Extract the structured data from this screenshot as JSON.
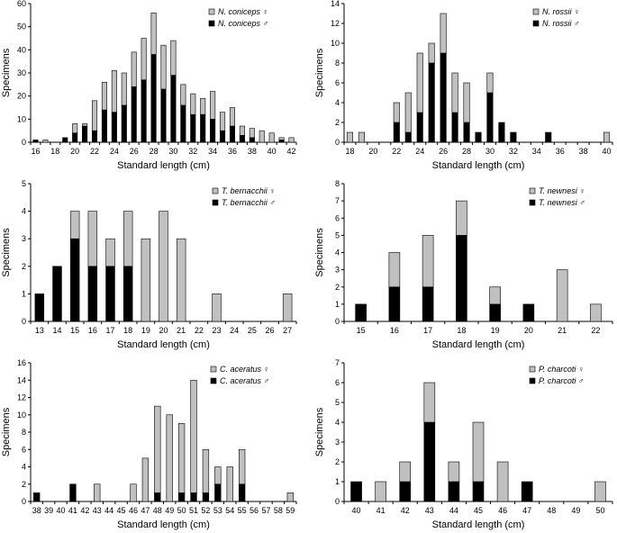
{
  "colors": {
    "female": "#c0c0c0",
    "male": "#000000",
    "axis": "#000000",
    "background": "#ffffff"
  },
  "chart_data": [
    {
      "type": "bar",
      "stacked": true,
      "title": "",
      "xlabel": "Standard length (cm)",
      "ylabel": "Specimens",
      "ylim": [
        0,
        60
      ],
      "yticks": [
        0,
        10,
        20,
        30,
        40,
        50,
        60
      ],
      "categories": [
        16,
        17,
        18,
        19,
        20,
        21,
        22,
        23,
        24,
        25,
        26,
        27,
        28,
        29,
        30,
        31,
        32,
        33,
        34,
        35,
        36,
        37,
        38,
        39,
        40,
        41,
        42
      ],
      "xtick_labels": [
        "16",
        "18",
        "20",
        "22",
        "24",
        "26",
        "28",
        "30",
        "32",
        "34",
        "36",
        "38",
        "40",
        "42"
      ],
      "series": [
        {
          "name": "N. coniceps ♀",
          "sex": "female",
          "values": [
            0,
            1,
            0,
            0,
            4,
            1,
            13,
            12,
            18,
            14,
            15,
            18,
            18,
            19,
            15,
            9,
            9,
            7,
            12,
            8,
            8,
            4,
            4,
            5,
            4,
            1,
            2
          ]
        },
        {
          "name": "N. coniceps ♂",
          "sex": "male",
          "values": [
            1,
            0,
            0,
            2,
            4,
            7,
            5,
            14,
            13,
            16,
            24,
            27,
            38,
            23,
            29,
            16,
            12,
            12,
            10,
            5,
            7,
            3,
            2,
            0,
            0,
            1,
            0
          ]
        }
      ],
      "legend": {
        "position": "top-right",
        "entries": [
          "N. coniceps ♀",
          "N. coniceps ♂"
        ]
      }
    },
    {
      "type": "bar",
      "stacked": true,
      "title": "",
      "xlabel": "Standard length (cm)",
      "ylabel": "Specimens",
      "ylim": [
        0,
        14
      ],
      "yticks": [
        0,
        2,
        4,
        6,
        8,
        10,
        12,
        14
      ],
      "categories": [
        18,
        19,
        20,
        21,
        22,
        23,
        24,
        25,
        26,
        27,
        28,
        29,
        30,
        31,
        32,
        33,
        34,
        35,
        36,
        37,
        38,
        39,
        40
      ],
      "xtick_labels": [
        "18",
        "20",
        "22",
        "24",
        "26",
        "28",
        "30",
        "32",
        "34",
        "36",
        "38",
        "40"
      ],
      "series": [
        {
          "name": "N. rossii ♀",
          "sex": "female",
          "values": [
            1,
            1,
            0,
            0,
            2,
            4,
            6,
            2,
            4,
            4,
            4,
            0,
            2,
            0,
            0,
            0,
            0,
            0,
            0,
            0,
            0,
            0,
            1
          ]
        },
        {
          "name": "N. rossii ♂",
          "sex": "male",
          "values": [
            0,
            0,
            0,
            0,
            2,
            1,
            3,
            8,
            9,
            3,
            2,
            1,
            5,
            2,
            1,
            0,
            0,
            1,
            0,
            0,
            0,
            0,
            0
          ]
        }
      ],
      "legend": {
        "position": "top-right",
        "entries": [
          "N. rossii ♀",
          "N. rossii ♂"
        ]
      }
    },
    {
      "type": "bar",
      "stacked": true,
      "title": "",
      "xlabel": "Standard length (cm)",
      "ylabel": "Specimens",
      "ylim": [
        0,
        5
      ],
      "yticks": [
        0,
        1,
        2,
        3,
        4,
        5
      ],
      "categories": [
        13,
        14,
        15,
        16,
        17,
        18,
        19,
        20,
        21,
        22,
        23,
        24,
        25,
        26,
        27
      ],
      "xtick_labels": [
        "13",
        "14",
        "15",
        "16",
        "17",
        "18",
        "19",
        "20",
        "21",
        "22",
        "23",
        "24",
        "25",
        "26",
        "27"
      ],
      "series": [
        {
          "name": "T. bernacchii ♀",
          "sex": "female",
          "values": [
            0,
            0,
            1,
            2,
            1,
            2,
            3,
            4,
            3,
            0,
            1,
            0,
            0,
            0,
            1
          ]
        },
        {
          "name": "T. bernacchii ♂",
          "sex": "male",
          "values": [
            1,
            2,
            3,
            2,
            2,
            2,
            0,
            0,
            0,
            0,
            0,
            0,
            0,
            0,
            0
          ]
        }
      ],
      "legend": {
        "position": "top-left",
        "entries": [
          "T. bernacchii ♀",
          "T. bernacchii ♂"
        ]
      }
    },
    {
      "type": "bar",
      "stacked": true,
      "title": "",
      "xlabel": "Standard length (cm)",
      "ylabel": "Specimens",
      "ylim": [
        0,
        8
      ],
      "yticks": [
        0,
        1,
        2,
        3,
        4,
        5,
        6,
        7,
        8
      ],
      "categories": [
        15,
        16,
        17,
        18,
        19,
        20,
        21,
        22
      ],
      "xtick_labels": [
        "15",
        "16",
        "17",
        "18",
        "19",
        "20",
        "21",
        "22"
      ],
      "series": [
        {
          "name": "T. newnesi ♀",
          "sex": "female",
          "values": [
            0,
            2,
            3,
            2,
            1,
            0,
            3,
            1
          ]
        },
        {
          "name": "T. newnesi ♂",
          "sex": "male",
          "values": [
            1,
            2,
            2,
            5,
            1,
            1,
            0,
            0
          ]
        }
      ],
      "legend": {
        "position": "top-right",
        "entries": [
          "T. newnesi ♀",
          "T. newnesi ♂"
        ]
      }
    },
    {
      "type": "bar",
      "stacked": true,
      "title": "",
      "xlabel": "Standard length (cm)",
      "ylabel": "Specimens",
      "ylim": [
        0,
        16
      ],
      "yticks": [
        0,
        2,
        4,
        6,
        8,
        10,
        12,
        14,
        16
      ],
      "categories": [
        38,
        39,
        40,
        41,
        42,
        43,
        44,
        45,
        46,
        47,
        48,
        49,
        50,
        51,
        52,
        53,
        54,
        55,
        56,
        57,
        58,
        59
      ],
      "xtick_labels": [
        "38",
        "39",
        "40",
        "41",
        "42",
        "43",
        "44",
        "45",
        "46",
        "47",
        "48",
        "49",
        "50",
        "51",
        "52",
        "53",
        "54",
        "55",
        "56",
        "57",
        "58",
        "59"
      ],
      "series": [
        {
          "name": "C. aceratus ♀",
          "sex": "female",
          "values": [
            0,
            0,
            0,
            0,
            0,
            2,
            0,
            0,
            2,
            5,
            10,
            10,
            8,
            13,
            5,
            2,
            4,
            4,
            0,
            0,
            0,
            1
          ]
        },
        {
          "name": "C. aceratus ♂",
          "sex": "male",
          "values": [
            1,
            0,
            0,
            2,
            0,
            0,
            0,
            0,
            0,
            0,
            1,
            0,
            1,
            1,
            1,
            2,
            0,
            2,
            0,
            0,
            0,
            0
          ]
        }
      ],
      "legend": {
        "position": "top-left",
        "entries": [
          "C. aceratus ♀",
          "C. aceratus ♂"
        ]
      }
    },
    {
      "type": "bar",
      "stacked": true,
      "title": "",
      "xlabel": "Standard length (cm)",
      "ylabel": "Specimens",
      "ylim": [
        0,
        7
      ],
      "yticks": [
        0,
        1,
        2,
        3,
        4,
        5,
        6,
        7
      ],
      "categories": [
        40,
        41,
        42,
        43,
        44,
        45,
        46,
        47,
        48,
        49,
        50
      ],
      "xtick_labels": [
        "40",
        "41",
        "42",
        "43",
        "44",
        "45",
        "46",
        "47",
        "48",
        "49",
        "50"
      ],
      "series": [
        {
          "name": "P. charcoti ♀",
          "sex": "female",
          "values": [
            0,
            1,
            1,
            2,
            1,
            3,
            2,
            0,
            0,
            0,
            1
          ]
        },
        {
          "name": "P. charcoti ♂",
          "sex": "male",
          "values": [
            1,
            0,
            1,
            4,
            1,
            1,
            0,
            1,
            0,
            0,
            0
          ]
        }
      ],
      "legend": {
        "position": "top-right",
        "entries": [
          "P. charcoti ♀",
          "P. charcoti ♂"
        ]
      }
    }
  ]
}
